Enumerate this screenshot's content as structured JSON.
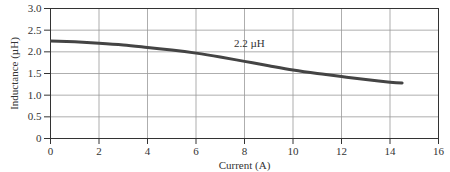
{
  "chart_data": {
    "type": "line",
    "x_label": "Current (A)",
    "y_label": "Inductance (µH)",
    "x": [
      0,
      1,
      2,
      3,
      4,
      5,
      6,
      7,
      8,
      9,
      10,
      11,
      12,
      13,
      14,
      14.5
    ],
    "series": [
      {
        "name": "2.2 µH",
        "color": "#444444",
        "values": [
          2.25,
          2.23,
          2.2,
          2.16,
          2.1,
          2.04,
          1.97,
          1.88,
          1.78,
          1.68,
          1.58,
          1.5,
          1.43,
          1.36,
          1.3,
          1.28
        ]
      }
    ],
    "annotations": [
      {
        "text": "2.2 µH",
        "x": 8.2,
        "y": 2.2
      }
    ],
    "xlim": [
      0,
      16
    ],
    "xticks": [
      0,
      2,
      4,
      6,
      8,
      10,
      12,
      14,
      16
    ],
    "ylim": [
      0,
      3
    ],
    "yticks": [
      0,
      0.5,
      {
        "value": 1,
        "label": "1.0"
      },
      1.5,
      {
        "value": 2,
        "label": "2.0"
      },
      2.5,
      {
        "value": 3,
        "label": "3.0"
      }
    ],
    "grid": true
  }
}
